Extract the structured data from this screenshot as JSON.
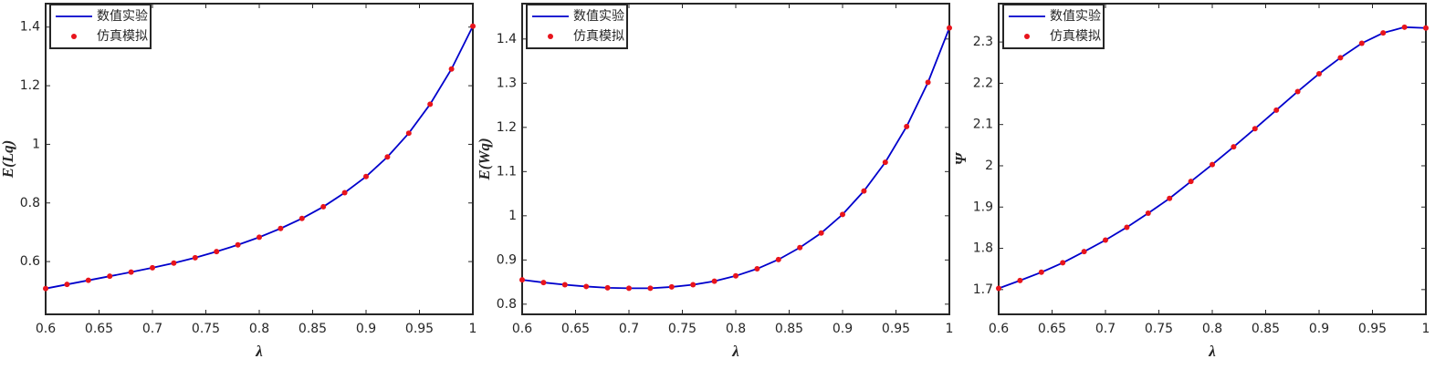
{
  "chart_data": [
    {
      "type": "line",
      "xlabel": "λ",
      "ylabel": "E(Lq)",
      "x": [
        0.6,
        0.62,
        0.64,
        0.66,
        0.68,
        0.7,
        0.72,
        0.74,
        0.76,
        0.78,
        0.8,
        0.82,
        0.84,
        0.86,
        0.88,
        0.9,
        0.92,
        0.94,
        0.96,
        0.98,
        1
      ],
      "series": [
        {
          "name": "数值实验",
          "color": "#0000cc",
          "marker": "line",
          "values": [
            0.508,
            0.522,
            0.536,
            0.55,
            0.564,
            0.579,
            0.595,
            0.613,
            0.634,
            0.657,
            0.683,
            0.713,
            0.747,
            0.787,
            0.835,
            0.89,
            0.957,
            1.038,
            1.137,
            1.257,
            1.403
          ]
        },
        {
          "name": "仿真模拟",
          "color": "#e8141c",
          "marker": "dot",
          "values": [
            0.508,
            0.522,
            0.536,
            0.55,
            0.564,
            0.579,
            0.595,
            0.613,
            0.634,
            0.657,
            0.683,
            0.713,
            0.747,
            0.787,
            0.835,
            0.89,
            0.957,
            1.038,
            1.137,
            1.257,
            1.403
          ]
        }
      ],
      "xlim": [
        0.6,
        1
      ],
      "xticks": [
        0.6,
        0.65,
        0.7,
        0.75,
        0.8,
        0.85,
        0.9,
        0.95,
        1
      ],
      "ylim": [
        0.42,
        1.48
      ],
      "yticks": [
        0.6,
        0.8,
        1,
        1.2,
        1.4
      ],
      "legend": "upper-left"
    },
    {
      "type": "line",
      "xlabel": "λ",
      "ylabel": "E(Wq)",
      "x": [
        0.6,
        0.62,
        0.64,
        0.66,
        0.68,
        0.7,
        0.72,
        0.74,
        0.76,
        0.78,
        0.8,
        0.82,
        0.84,
        0.86,
        0.88,
        0.9,
        0.92,
        0.94,
        0.96,
        0.98,
        1
      ],
      "series": [
        {
          "name": "数值实验",
          "color": "#0000cc",
          "marker": "line",
          "values": [
            0.855,
            0.849,
            0.844,
            0.84,
            0.837,
            0.836,
            0.836,
            0.839,
            0.844,
            0.852,
            0.864,
            0.88,
            0.901,
            0.928,
            0.961,
            1.003,
            1.056,
            1.121,
            1.202,
            1.302,
            1.425
          ]
        },
        {
          "name": "仿真模拟",
          "color": "#e8141c",
          "marker": "dot",
          "values": [
            0.855,
            0.849,
            0.844,
            0.84,
            0.837,
            0.836,
            0.836,
            0.839,
            0.844,
            0.852,
            0.864,
            0.88,
            0.901,
            0.928,
            0.961,
            1.003,
            1.056,
            1.121,
            1.202,
            1.302,
            1.425
          ]
        }
      ],
      "xlim": [
        0.6,
        1
      ],
      "xticks": [
        0.6,
        0.65,
        0.7,
        0.75,
        0.8,
        0.85,
        0.9,
        0.95,
        1
      ],
      "ylim": [
        0.777,
        1.48
      ],
      "yticks": [
        0.8,
        0.9,
        1,
        1.1,
        1.2,
        1.3,
        1.4
      ],
      "legend": "upper-left"
    },
    {
      "type": "line",
      "xlabel": "λ",
      "ylabel": "Ψ",
      "x": [
        0.6,
        0.62,
        0.64,
        0.66,
        0.68,
        0.7,
        0.72,
        0.74,
        0.76,
        0.78,
        0.8,
        0.82,
        0.84,
        0.86,
        0.88,
        0.9,
        0.92,
        0.94,
        0.96,
        0.98,
        1
      ],
      "series": [
        {
          "name": "数值实验",
          "color": "#0000cc",
          "marker": "line",
          "values": [
            1.703,
            1.722,
            1.742,
            1.765,
            1.792,
            1.82,
            1.851,
            1.885,
            1.921,
            1.962,
            2.003,
            2.046,
            2.09,
            2.135,
            2.18,
            2.223,
            2.262,
            2.297,
            2.322,
            2.336,
            2.334
          ]
        },
        {
          "name": "仿真模拟",
          "color": "#e8141c",
          "marker": "dot",
          "values": [
            1.703,
            1.722,
            1.742,
            1.765,
            1.792,
            1.82,
            1.851,
            1.885,
            1.921,
            1.962,
            2.003,
            2.046,
            2.09,
            2.135,
            2.18,
            2.223,
            2.262,
            2.297,
            2.322,
            2.336,
            2.334
          ]
        }
      ],
      "xlim": [
        0.6,
        1
      ],
      "xticks": [
        0.6,
        0.65,
        0.7,
        0.75,
        0.8,
        0.85,
        0.9,
        0.95,
        1
      ],
      "ylim": [
        1.64,
        2.393
      ],
      "yticks": [
        1.7,
        1.8,
        1.9,
        2,
        2.1,
        2.2,
        2.3
      ],
      "legend": "upper-left"
    }
  ]
}
